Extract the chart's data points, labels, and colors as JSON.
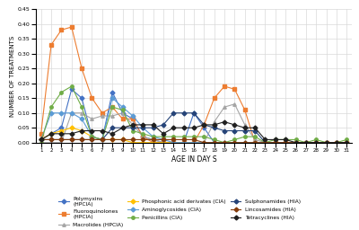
{
  "days": [
    1,
    2,
    3,
    4,
    5,
    6,
    7,
    8,
    9,
    10,
    11,
    12,
    13,
    14,
    15,
    16,
    17,
    18,
    19,
    20,
    21,
    22,
    23,
    24,
    25,
    26,
    27,
    28,
    29,
    30,
    31
  ],
  "series": {
    "Polymyxins\n(HPCIA)": [
      0.01,
      0.03,
      0.05,
      0.18,
      0.15,
      0.02,
      0.01,
      0.17,
      0.1,
      0.08,
      0.02,
      0.01,
      0.0,
      0.0,
      0.0,
      0.1,
      0.05,
      0.0,
      0.0,
      0.0,
      0.0,
      0.0,
      0.0,
      0.0,
      0.0,
      0.0,
      0.0,
      0.0,
      0.0,
      0.0,
      0.0
    ],
    "Fluoroquinolones\n(HPCIA)": [
      0.03,
      0.33,
      0.38,
      0.39,
      0.25,
      0.15,
      0.1,
      0.12,
      0.08,
      0.08,
      0.02,
      0.0,
      0.0,
      0.0,
      0.0,
      0.0,
      0.06,
      0.15,
      0.19,
      0.18,
      0.11,
      0.0,
      0.0,
      0.0,
      0.0,
      0.0,
      0.0,
      0.0,
      0.0,
      0.0,
      0.0
    ],
    "Macrolides (HPCIA)": [
      0.0,
      0.0,
      0.0,
      0.1,
      0.1,
      0.08,
      0.09,
      0.09,
      0.1,
      0.06,
      0.02,
      0.01,
      0.0,
      0.0,
      0.0,
      0.0,
      0.0,
      0.07,
      0.12,
      0.13,
      0.06,
      0.01,
      0.0,
      0.0,
      0.0,
      0.0,
      0.0,
      0.0,
      0.0,
      0.0,
      0.0
    ],
    "Phosphonic acid derivates (CIA)": [
      0.01,
      0.03,
      0.04,
      0.05,
      0.04,
      0.02,
      0.01,
      0.01,
      0.01,
      0.0,
      0.0,
      0.0,
      0.0,
      0.0,
      0.0,
      0.0,
      0.0,
      0.0,
      0.0,
      0.0,
      0.0,
      0.0,
      0.0,
      0.0,
      0.0,
      0.0,
      0.0,
      0.0,
      0.0,
      0.0,
      0.0
    ],
    "Aminoglycosides (CIA)": [
      0.01,
      0.1,
      0.1,
      0.1,
      0.08,
      0.02,
      0.01,
      0.15,
      0.12,
      0.09,
      0.05,
      0.02,
      0.01,
      0.0,
      0.0,
      0.0,
      0.0,
      0.0,
      0.0,
      0.0,
      0.0,
      0.0,
      0.0,
      0.0,
      0.0,
      0.0,
      0.0,
      0.0,
      0.0,
      0.0,
      0.0
    ],
    "Penicillins (CIA)": [
      0.0,
      0.12,
      0.17,
      0.19,
      0.12,
      0.02,
      0.01,
      0.12,
      0.11,
      0.04,
      0.03,
      0.02,
      0.02,
      0.02,
      0.02,
      0.02,
      0.02,
      0.01,
      0.0,
      0.01,
      0.02,
      0.02,
      0.0,
      0.01,
      0.01,
      0.01,
      0.0,
      0.01,
      0.0,
      0.0,
      0.01
    ],
    "Sulphonamides (HIA)": [
      0.01,
      0.01,
      0.01,
      0.01,
      0.01,
      0.01,
      0.01,
      0.05,
      0.05,
      0.05,
      0.05,
      0.05,
      0.06,
      0.1,
      0.1,
      0.1,
      0.06,
      0.05,
      0.04,
      0.04,
      0.04,
      0.04,
      0.0,
      0.0,
      0.0,
      0.0,
      0.0,
      0.0,
      0.0,
      0.0,
      0.0
    ],
    "Lincosamides (HIA)": [
      0.01,
      0.01,
      0.01,
      0.01,
      0.01,
      0.01,
      0.01,
      0.01,
      0.01,
      0.01,
      0.01,
      0.01,
      0.01,
      0.01,
      0.01,
      0.01,
      0.0,
      0.0,
      0.0,
      0.0,
      0.0,
      0.0,
      0.0,
      0.0,
      0.0,
      0.0,
      0.0,
      0.0,
      0.0,
      0.0,
      0.0
    ],
    "Tetracyclines (HIA)": [
      0.01,
      0.03,
      0.03,
      0.03,
      0.04,
      0.04,
      0.04,
      0.03,
      0.05,
      0.06,
      0.06,
      0.06,
      0.03,
      0.05,
      0.05,
      0.05,
      0.06,
      0.06,
      0.07,
      0.06,
      0.05,
      0.05,
      0.01,
      0.01,
      0.01,
      0.0,
      0.0,
      0.0,
      0.0,
      0.0,
      0.0
    ]
  },
  "colors": {
    "Polymyxins\n(HPCIA)": "#4472C4",
    "Fluoroquinolones\n(HPCIA)": "#ED7D31",
    "Macrolides (HPCIA)": "#A5A5A5",
    "Phosphonic acid derivates (CIA)": "#FFC000",
    "Aminoglycosides (CIA)": "#5B9BD5",
    "Penicillins (CIA)": "#70AD47",
    "Sulphonamides (HIA)": "#264478",
    "Lincosamides (HIA)": "#843C0C",
    "Tetracyclines (HIA)": "#1F1F1F"
  },
  "markers": {
    "Polymyxins\n(HPCIA)": "D",
    "Fluoroquinolones\n(HPCIA)": "s",
    "Macrolides (HPCIA)": "^",
    "Phosphonic acid derivates (CIA)": "D",
    "Aminoglycosides (CIA)": "D",
    "Penicillins (CIA)": "o",
    "Sulphonamides (HIA)": "D",
    "Lincosamides (HIA)": "D",
    "Tetracyclines (HIA)": "D"
  },
  "ylim": [
    0,
    0.45
  ],
  "yticks": [
    0,
    0.05,
    0.1,
    0.15,
    0.2,
    0.25,
    0.3,
    0.35,
    0.4,
    0.45
  ],
  "xlabel": "AGE IN DAY S",
  "ylabel": "NUMBER OF TREATMENTS",
  "background_color": "#FFFFFF",
  "grid_color": "#D9D9D9"
}
